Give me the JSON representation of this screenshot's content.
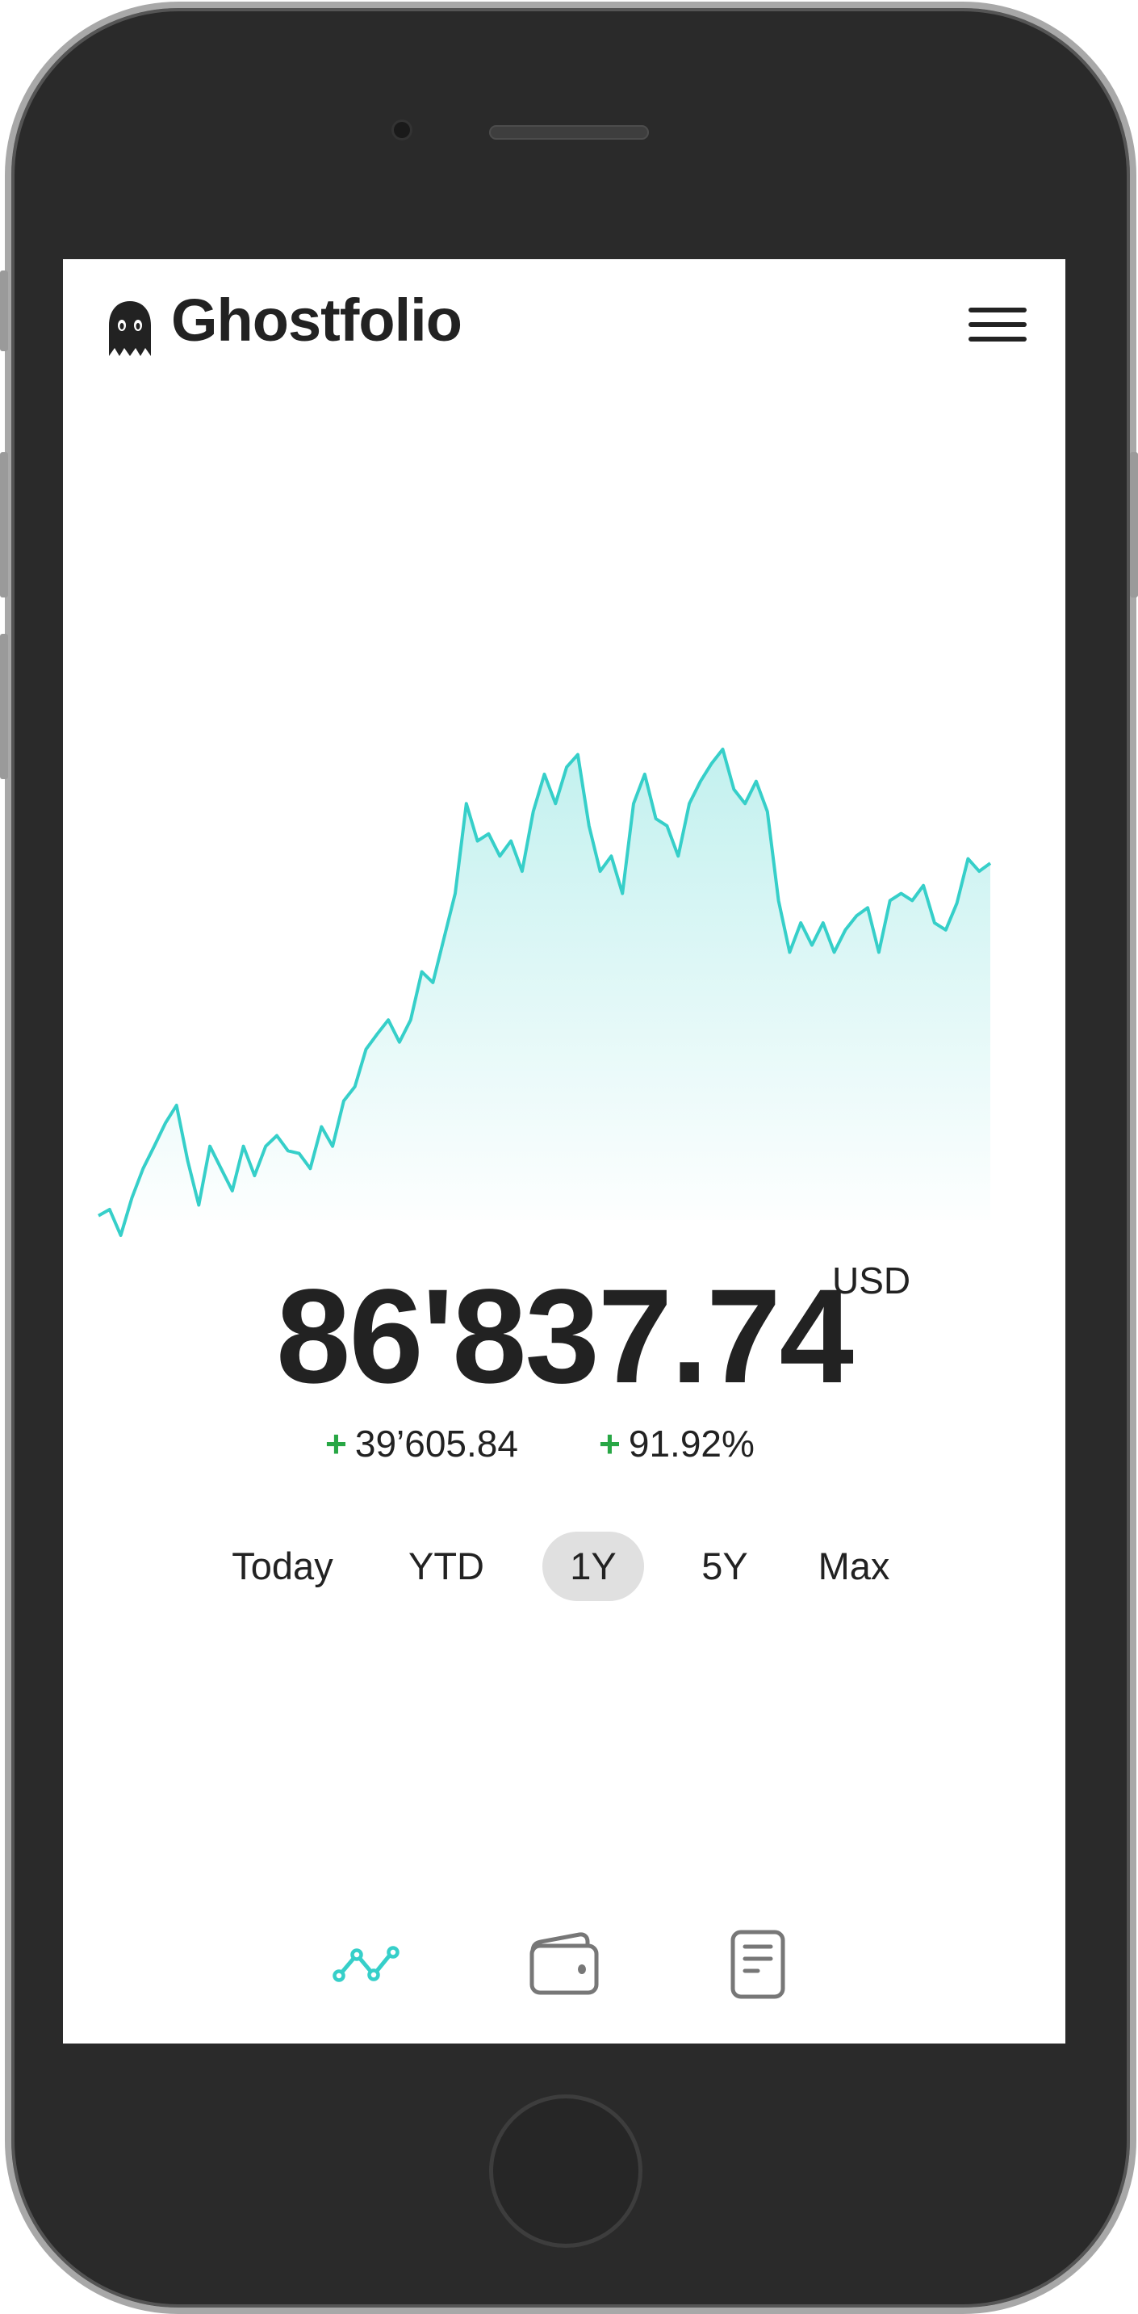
{
  "app": {
    "title": "Ghostfolio",
    "logo_icon": "ghost-icon",
    "menu_icon": "hamburger-menu-icon"
  },
  "summary": {
    "value": "86'837.74",
    "currency": "USD",
    "change_sign": "+",
    "change_absolute": "39’605.84",
    "change_percent": "91.92%"
  },
  "ranges": {
    "items": [
      {
        "label": "Today",
        "active": false
      },
      {
        "label": "YTD",
        "active": false
      },
      {
        "label": "1Y",
        "active": true
      },
      {
        "label": "5Y",
        "active": false
      },
      {
        "label": "Max",
        "active": false
      }
    ]
  },
  "bottom_nav": {
    "items": [
      {
        "icon": "line-chart-icon",
        "active": true
      },
      {
        "icon": "wallet-icon",
        "active": false
      },
      {
        "icon": "document-icon",
        "active": false
      }
    ]
  },
  "colors": {
    "accent": "#36cfc9",
    "positive": "#28a745",
    "inactive_icon": "#777777",
    "active_range_bg": "#e0e0e0"
  },
  "chart_data": {
    "type": "area",
    "title": "",
    "xlabel": "",
    "ylabel": "",
    "grid": false,
    "axes_visible": false,
    "series": [
      {
        "values": [
          47200,
          47900,
          45000,
          49200,
          52500,
          55000,
          57600,
          59600,
          53400,
          48400,
          55000,
          52500,
          50000,
          55000,
          51700,
          55000,
          56200,
          54500,
          54200,
          52500,
          57200,
          55000,
          60100,
          61700,
          65900,
          67600,
          69200,
          66700,
          69200,
          74600,
          73400,
          78400,
          83400,
          93500,
          89300,
          90100,
          87600,
          89300,
          85900,
          92600,
          96800,
          93500,
          97600,
          99000,
          91000,
          85900,
          87600,
          83400,
          93500,
          96800,
          91800,
          91000,
          87600,
          93500,
          96000,
          98000,
          99600,
          95100,
          93500,
          96000,
          92600,
          82600,
          76800,
          80100,
          77600,
          80100,
          76800,
          79300,
          80900,
          81800,
          76800,
          82600,
          83400,
          82600,
          84300,
          80100,
          79300,
          82300,
          87300,
          85900,
          86800
        ]
      }
    ]
  }
}
